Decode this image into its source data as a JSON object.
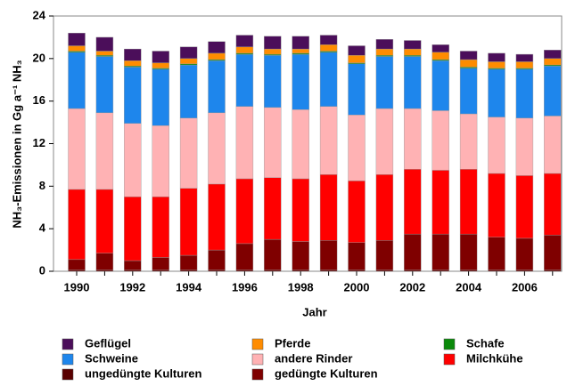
{
  "chart_data": {
    "type": "stacked_bar",
    "x_label": "Jahr",
    "y_label": "NH₃-Emissionen in Gg a⁻¹ NH₃",
    "categories": [
      "1990",
      null,
      "1992",
      null,
      "1994",
      null,
      "1996",
      null,
      "1998",
      null,
      "2000",
      null,
      "2002",
      null,
      "2004",
      null,
      "2006",
      null
    ],
    "ylim": [
      0,
      24
    ],
    "yticks": [
      0,
      4,
      8,
      12,
      16,
      20,
      24
    ],
    "series": [
      {
        "name": "ungedüngte Kulturen",
        "color": "#5a0000",
        "values": [
          0.1,
          0.1,
          0.1,
          0.1,
          0.1,
          0.1,
          0.1,
          0.1,
          0.1,
          0.1,
          0.1,
          0.1,
          0.1,
          0.1,
          0.1,
          0.1,
          0.1,
          0.1
        ]
      },
      {
        "name": "gedüngte Kulturen",
        "color": "#7f0000",
        "values": [
          1.0,
          1.6,
          0.9,
          1.2,
          1.4,
          1.9,
          2.5,
          2.9,
          2.7,
          2.8,
          2.6,
          2.8,
          3.4,
          3.4,
          3.4,
          3.1,
          3.0,
          3.3
        ]
      },
      {
        "name": "Milchkühe",
        "color": "#ff0000",
        "values": [
          6.6,
          6.0,
          6.0,
          5.7,
          6.3,
          6.2,
          6.1,
          5.8,
          5.9,
          6.2,
          5.8,
          6.2,
          6.1,
          6.0,
          6.1,
          6.0,
          5.9,
          5.8
        ]
      },
      {
        "name": "andere Rinder",
        "color": "#ffb2b4",
        "values": [
          7.6,
          7.2,
          6.9,
          6.7,
          6.6,
          6.7,
          6.8,
          6.6,
          6.5,
          6.4,
          6.2,
          6.2,
          5.7,
          5.6,
          5.2,
          5.3,
          5.4,
          5.4
        ]
      },
      {
        "name": "Schweine",
        "color": "#1e86ec",
        "values": [
          5.3,
          5.3,
          5.3,
          5.3,
          5.0,
          4.9,
          4.9,
          4.9,
          5.2,
          5.1,
          4.8,
          4.9,
          4.9,
          4.7,
          4.3,
          4.5,
          4.6,
          4.7
        ]
      },
      {
        "name": "Schafe",
        "color": "#0a8a0a",
        "values": [
          0.1,
          0.1,
          0.1,
          0.1,
          0.1,
          0.1,
          0.1,
          0.1,
          0.1,
          0.1,
          0.1,
          0.1,
          0.1,
          0.1,
          0.1,
          0.1,
          0.1,
          0.1
        ]
      },
      {
        "name": "Pferde",
        "color": "#ff8c00",
        "values": [
          0.5,
          0.4,
          0.5,
          0.5,
          0.5,
          0.6,
          0.6,
          0.5,
          0.4,
          0.6,
          0.7,
          0.6,
          0.6,
          0.7,
          0.7,
          0.6,
          0.6,
          0.6
        ]
      },
      {
        "name": "Geflügel",
        "color": "#4b0e5a",
        "values": [
          1.2,
          1.3,
          1.1,
          1.1,
          1.1,
          1.1,
          1.1,
          1.2,
          1.2,
          0.9,
          0.9,
          0.9,
          0.8,
          0.7,
          0.8,
          0.8,
          0.7,
          0.8
        ]
      }
    ]
  }
}
